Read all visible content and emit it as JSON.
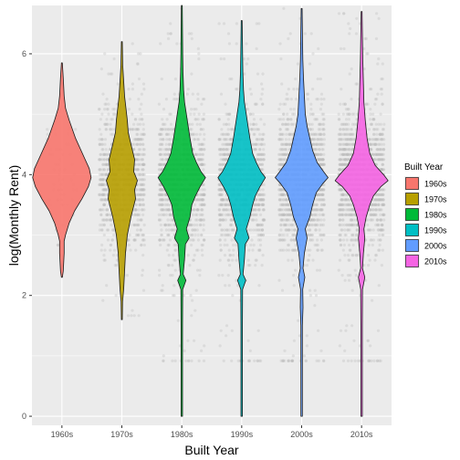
{
  "chart_data": {
    "type": "violin",
    "title": "",
    "xlabel": "Built Year",
    "ylabel": "log(Monthly Rent)",
    "categories": [
      "1960s",
      "1970s",
      "1980s",
      "1990s",
      "2000s",
      "2010s"
    ],
    "ylim": [
      -0.15,
      6.8
    ],
    "yticks": [
      0,
      2,
      4,
      6
    ],
    "grid": true,
    "jitter_points": true,
    "legend": {
      "title": "Built Year",
      "position": "right",
      "entries": [
        "1960s",
        "1970s",
        "1980s",
        "1990s",
        "2000s",
        "2010s"
      ]
    },
    "colors": {
      "1960s": "#F8766D",
      "1970s": "#B79F00",
      "1980s": "#00BA38",
      "1990s": "#00BFC4",
      "2000s": "#619CFF",
      "2010s": "#F564E3",
      "panel": "#EBEBEB",
      "grid": "#FFFFFF",
      "points": "#BEBEBE"
    },
    "series": [
      {
        "name": "1960s",
        "min": 2.3,
        "max": 5.85,
        "median": 3.95
      },
      {
        "name": "1970s",
        "min": 1.6,
        "max": 6.2,
        "median": 3.9
      },
      {
        "name": "1980s",
        "min": 0.0,
        "max": 6.8,
        "median": 3.85
      },
      {
        "name": "1990s",
        "min": 0.0,
        "max": 6.55,
        "median": 3.85
      },
      {
        "name": "2000s",
        "min": 0.0,
        "max": 6.75,
        "median": 3.9
      },
      {
        "name": "2010s",
        "min": 0.0,
        "max": 6.7,
        "median": 3.9
      }
    ]
  }
}
